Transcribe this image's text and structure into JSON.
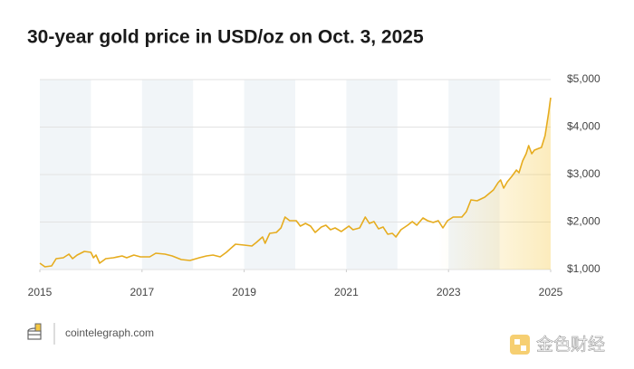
{
  "chart_data": {
    "type": "line",
    "title": "30-year gold price in USD/oz on Oct. 3, 2025",
    "x": [
      2015.0,
      2015.1,
      2015.23,
      2015.32,
      2015.46,
      2015.57,
      2015.64,
      2015.73,
      2015.87,
      2016.0,
      2016.05,
      2016.1,
      2016.17,
      2016.29,
      2016.44,
      2016.61,
      2016.7,
      2016.84,
      2016.97,
      2017.15,
      2017.27,
      2017.45,
      2017.59,
      2017.77,
      2017.94,
      2018.12,
      2018.26,
      2018.39,
      2018.53,
      2018.65,
      2018.83,
      2019.0,
      2019.15,
      2019.24,
      2019.36,
      2019.41,
      2019.5,
      2019.63,
      2019.72,
      2019.8,
      2019.89,
      2020.02,
      2020.1,
      2020.2,
      2020.3,
      2020.39,
      2020.51,
      2020.6,
      2020.69,
      2020.78,
      2020.9,
      2021.05,
      2021.13,
      2021.26,
      2021.37,
      2021.45,
      2021.54,
      2021.63,
      2021.72,
      2021.81,
      2021.9,
      2021.97,
      2022.07,
      2022.2,
      2022.29,
      2022.38,
      2022.5,
      2022.59,
      2022.7,
      2022.8,
      2022.89,
      2022.98,
      2023.09,
      2023.26,
      2023.35,
      2023.44,
      2023.56,
      2023.71,
      2023.88,
      2023.97,
      2024.02,
      2024.08,
      2024.15,
      2024.24,
      2024.33,
      2024.38,
      2024.45,
      2024.52,
      2024.57,
      2024.63,
      2024.68,
      2024.77,
      2024.82,
      2024.89,
      2024.96,
      2025.0
    ],
    "series": [
      {
        "name": "Gold price",
        "color": "#e6ac1e",
        "values": [
          1133,
          1057,
          1076,
          1229,
          1248,
          1324,
          1229,
          1305,
          1381,
          1362,
          1248,
          1305,
          1133,
          1229,
          1248,
          1286,
          1248,
          1305,
          1267,
          1267,
          1343,
          1324,
          1286,
          1210,
          1190,
          1248,
          1286,
          1305,
          1267,
          1362,
          1533,
          1514,
          1495,
          1571,
          1686,
          1552,
          1762,
          1781,
          1876,
          2105,
          2029,
          2029,
          1914,
          1971,
          1914,
          1781,
          1895,
          1933,
          1838,
          1876,
          1800,
          1914,
          1838,
          1876,
          2105,
          1971,
          2010,
          1857,
          1895,
          1743,
          1762,
          1686,
          1838,
          1933,
          2010,
          1933,
          2086,
          2029,
          1990,
          2029,
          1876,
          2029,
          2105,
          2105,
          2219,
          2467,
          2448,
          2524,
          2676,
          2829,
          2886,
          2714,
          2848,
          2962,
          3095,
          3038,
          3286,
          3438,
          3610,
          3438,
          3514,
          3552,
          3571,
          3819,
          4295,
          4619
        ]
      }
    ],
    "xlim": [
      2015,
      2025
    ],
    "xticks": [
      2015,
      2017,
      2019,
      2021,
      2023,
      2025
    ],
    "ylim": [
      1000,
      5000
    ],
    "yticks": [
      {
        "value": 1000,
        "label": "$1,000"
      },
      {
        "value": 2000,
        "label": "$2,000"
      },
      {
        "value": 3000,
        "label": "$3,000"
      },
      {
        "value": 4000,
        "label": "$4,000"
      },
      {
        "value": 5000,
        "label": "$5,000"
      }
    ],
    "grid": true
  },
  "footer": {
    "source": "cointelegraph.com",
    "watermark": "金色财经"
  }
}
